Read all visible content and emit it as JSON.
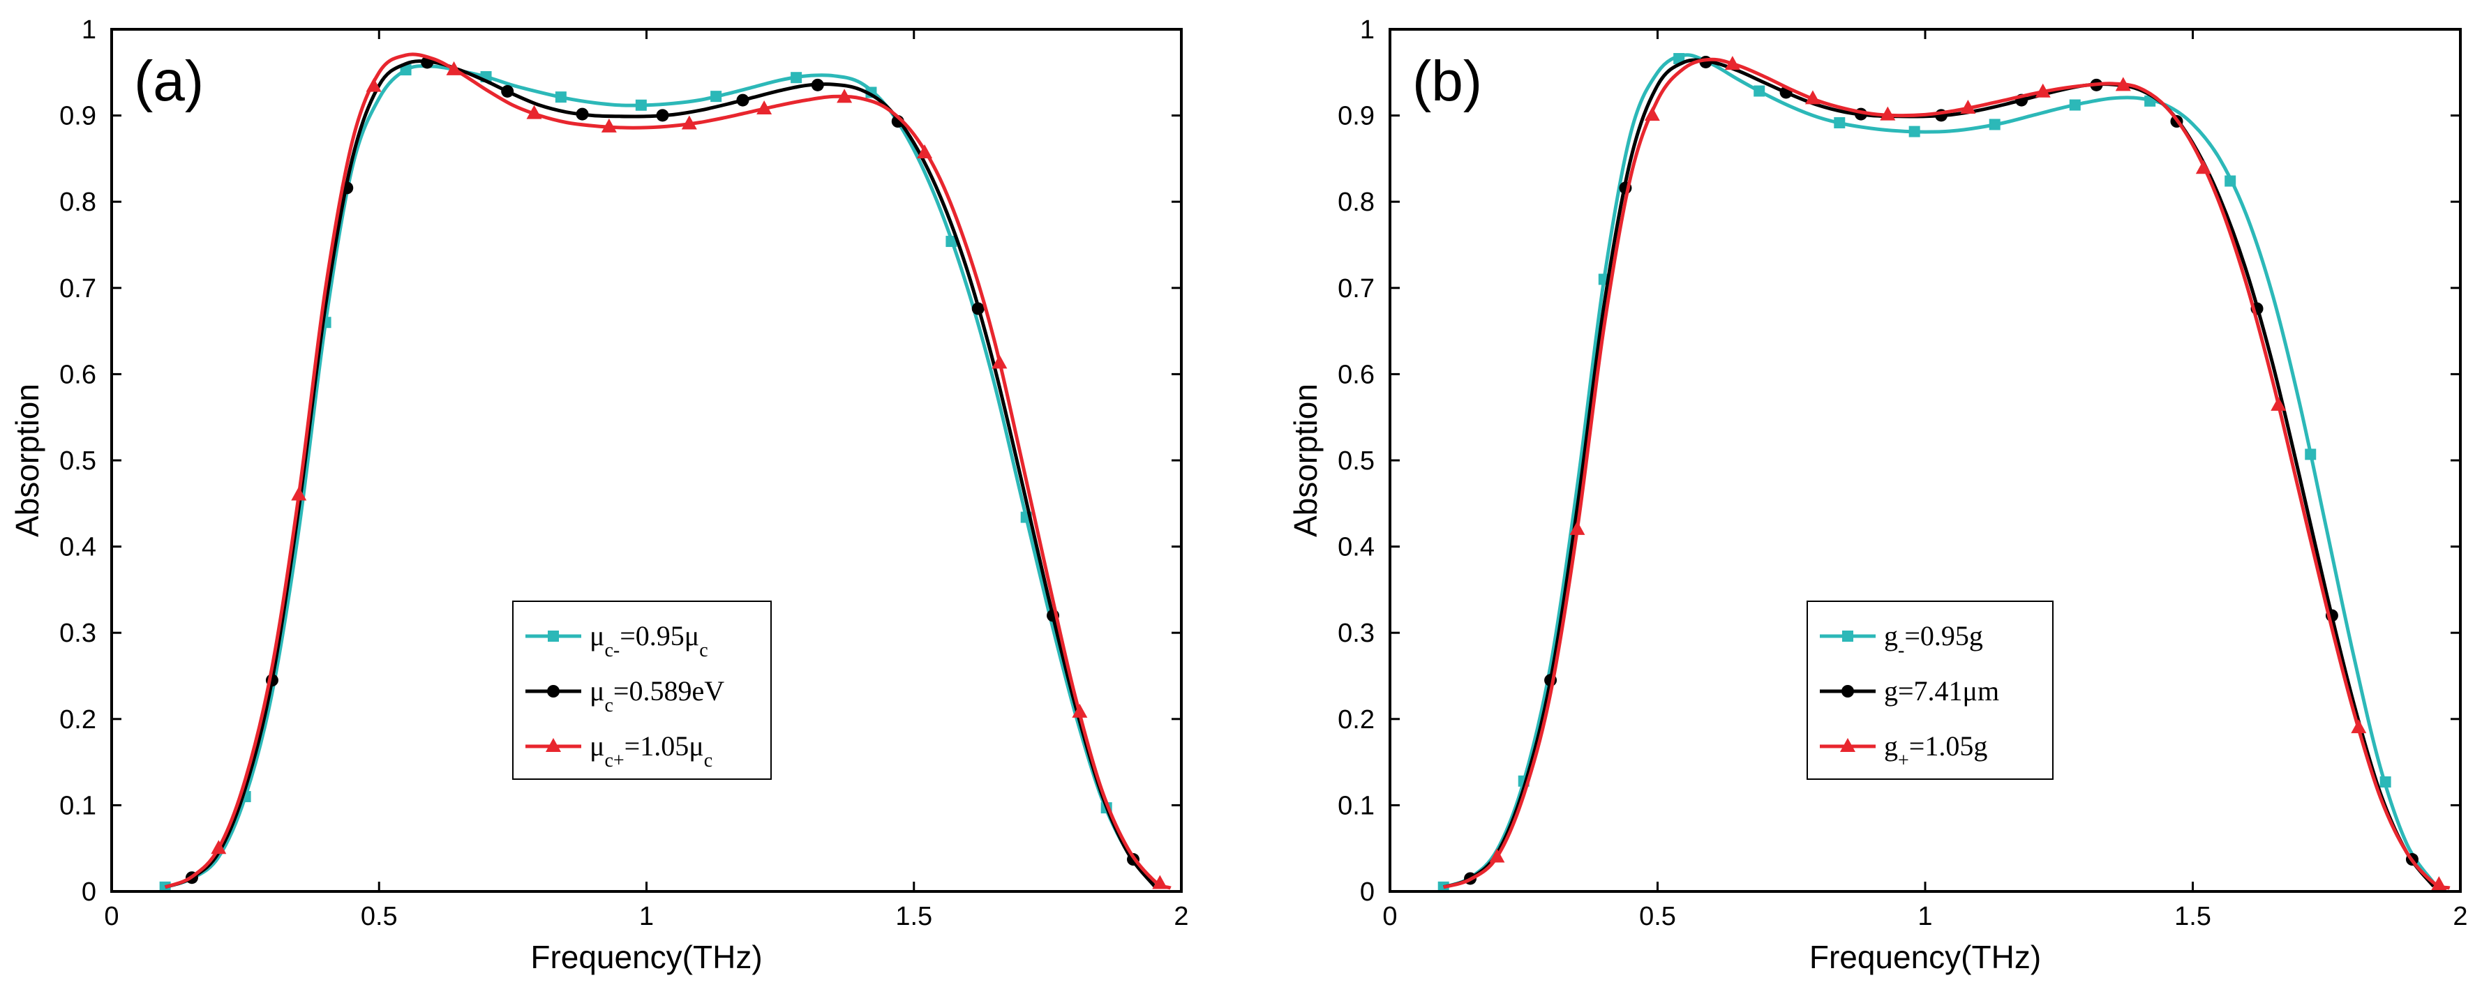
{
  "chart_data": [
    {
      "panel": "(a)",
      "type": "line",
      "xlabel": "Frequency(THz)",
      "ylabel": "Absorption",
      "xlim": [
        0,
        2
      ],
      "ylim": [
        0,
        1
      ],
      "xticks": [
        0,
        0.5,
        1,
        1.5,
        2
      ],
      "xtick_labels": [
        "0",
        "0.5",
        "1",
        "1.5",
        "2"
      ],
      "yticks": [
        0,
        0.1,
        0.2,
        0.3,
        0.4,
        0.5,
        0.6,
        0.7,
        0.8,
        0.9,
        1
      ],
      "ytick_labels": [
        "0",
        "0.1",
        "0.2",
        "0.3",
        "0.4",
        "0.5",
        "0.6",
        "0.7",
        "0.8",
        "0.9",
        "1"
      ],
      "legend_position": "bottom-center",
      "series": [
        {
          "name": "μc-=0.95μc",
          "legend": {
            "base": "μ",
            "sub": "c-",
            "text": "=0.95μ",
            "tail_sub": "c"
          },
          "color": "#2cb8b8",
          "marker": "square",
          "x": [
            0.1,
            0.15,
            0.2,
            0.25,
            0.3,
            0.35,
            0.4,
            0.45,
            0.5,
            0.55,
            0.6,
            0.65,
            0.7,
            0.75,
            0.8,
            0.85,
            0.9,
            0.95,
            1.0,
            1.05,
            1.1,
            1.15,
            1.2,
            1.25,
            1.3,
            1.35,
            1.4,
            1.45,
            1.5,
            1.55,
            1.6,
            1.65,
            1.7,
            1.75,
            1.8,
            1.85,
            1.9,
            1.95
          ],
          "y": [
            0.005,
            0.015,
            0.04,
            0.11,
            0.23,
            0.42,
            0.66,
            0.84,
            0.92,
            0.953,
            0.957,
            0.952,
            0.945,
            0.935,
            0.927,
            0.92,
            0.915,
            0.912,
            0.912,
            0.914,
            0.918,
            0.925,
            0.933,
            0.941,
            0.946,
            0.946,
            0.938,
            0.91,
            0.86,
            0.79,
            0.7,
            0.59,
            0.46,
            0.33,
            0.21,
            0.11,
            0.045,
            0.006
          ],
          "marker_x": [
            0.1,
            0.25,
            0.4,
            0.55,
            0.7,
            0.84,
            0.99,
            1.13,
            1.28,
            1.42,
            1.57,
            1.71,
            1.86
          ]
        },
        {
          "name": "μc=0.589eV",
          "legend": {
            "base": "μ",
            "sub": "c",
            "text": "=0.589eV",
            "tail_sub": ""
          },
          "color": "#000000",
          "marker": "circle",
          "x": [
            0.1,
            0.15,
            0.2,
            0.25,
            0.3,
            0.35,
            0.4,
            0.45,
            0.5,
            0.55,
            0.6,
            0.65,
            0.7,
            0.75,
            0.8,
            0.85,
            0.9,
            0.95,
            1.0,
            1.05,
            1.1,
            1.15,
            1.2,
            1.25,
            1.3,
            1.35,
            1.4,
            1.45,
            1.5,
            1.55,
            1.6,
            1.65,
            1.7,
            1.75,
            1.8,
            1.85,
            1.9,
            1.95
          ],
          "y": [
            0.005,
            0.016,
            0.045,
            0.12,
            0.245,
            0.445,
            0.68,
            0.85,
            0.935,
            0.96,
            0.962,
            0.953,
            0.94,
            0.925,
            0.912,
            0.904,
            0.9,
            0.899,
            0.899,
            0.901,
            0.906,
            0.913,
            0.921,
            0.929,
            0.935,
            0.936,
            0.93,
            0.91,
            0.868,
            0.805,
            0.72,
            0.61,
            0.48,
            0.345,
            0.22,
            0.115,
            0.045,
            0.006
          ],
          "marker_x": [
            0.15,
            0.3,
            0.44,
            0.59,
            0.74,
            0.88,
            1.03,
            1.18,
            1.32,
            1.47,
            1.62,
            1.76,
            1.91
          ]
        },
        {
          "name": "μc+=1.05μc",
          "legend": {
            "base": "μ",
            "sub": "c+",
            "text": "=1.05μ",
            "tail_sub": "c"
          },
          "color": "#e8262e",
          "marker": "triangle",
          "x": [
            0.1,
            0.15,
            0.2,
            0.25,
            0.3,
            0.35,
            0.4,
            0.45,
            0.5,
            0.55,
            0.6,
            0.65,
            0.7,
            0.75,
            0.8,
            0.85,
            0.9,
            0.95,
            1.0,
            1.05,
            1.1,
            1.15,
            1.2,
            1.25,
            1.3,
            1.35,
            1.4,
            1.45,
            1.5,
            1.55,
            1.6,
            1.65,
            1.7,
            1.75,
            1.8,
            1.85,
            1.9,
            1.95,
            1.98
          ],
          "y": [
            0.005,
            0.017,
            0.05,
            0.13,
            0.26,
            0.46,
            0.7,
            0.87,
            0.95,
            0.97,
            0.966,
            0.95,
            0.93,
            0.912,
            0.9,
            0.892,
            0.888,
            0.886,
            0.886,
            0.888,
            0.892,
            0.898,
            0.905,
            0.912,
            0.918,
            0.922,
            0.92,
            0.908,
            0.878,
            0.825,
            0.745,
            0.64,
            0.505,
            0.365,
            0.23,
            0.12,
            0.05,
            0.012,
            0.004
          ],
          "marker_x": [
            0.2,
            0.35,
            0.49,
            0.64,
            0.79,
            0.93,
            1.08,
            1.22,
            1.37,
            1.52,
            1.66,
            1.81,
            1.96
          ]
        }
      ]
    },
    {
      "panel": "(b)",
      "type": "line",
      "xlabel": "Frequency(THz)",
      "ylabel": "Absorption",
      "xlim": [
        0,
        2
      ],
      "ylim": [
        0,
        1
      ],
      "xticks": [
        0,
        0.5,
        1,
        1.5,
        2
      ],
      "xtick_labels": [
        "0",
        "0.5",
        "1",
        "1.5",
        "2"
      ],
      "yticks": [
        0,
        0.1,
        0.2,
        0.3,
        0.4,
        0.5,
        0.6,
        0.7,
        0.8,
        0.9,
        1
      ],
      "ytick_labels": [
        "0",
        "0.1",
        "0.2",
        "0.3",
        "0.4",
        "0.5",
        "0.6",
        "0.7",
        "0.8",
        "0.9",
        "1"
      ],
      "legend_position": "bottom-center",
      "series": [
        {
          "name": "g-=0.95g",
          "legend": {
            "base": "g",
            "sub": "-",
            "text": "=0.95g",
            "tail_sub": ""
          },
          "color": "#2cb8b8",
          "marker": "square",
          "x": [
            0.1,
            0.15,
            0.2,
            0.25,
            0.3,
            0.35,
            0.4,
            0.45,
            0.5,
            0.55,
            0.6,
            0.65,
            0.7,
            0.75,
            0.8,
            0.85,
            0.9,
            0.95,
            1.0,
            1.05,
            1.1,
            1.15,
            1.2,
            1.25,
            1.3,
            1.35,
            1.4,
            1.45,
            1.5,
            1.55,
            1.6,
            1.65,
            1.7,
            1.75,
            1.8,
            1.85,
            1.9,
            1.95
          ],
          "y": [
            0.005,
            0.016,
            0.048,
            0.128,
            0.262,
            0.47,
            0.71,
            0.88,
            0.95,
            0.97,
            0.96,
            0.942,
            0.925,
            0.91,
            0.898,
            0.89,
            0.885,
            0.882,
            0.881,
            0.882,
            0.886,
            0.892,
            0.9,
            0.908,
            0.915,
            0.92,
            0.92,
            0.912,
            0.89,
            0.85,
            0.785,
            0.69,
            0.565,
            0.42,
            0.275,
            0.145,
            0.055,
            0.01
          ],
          "marker_x": [
            0.1,
            0.25,
            0.4,
            0.54,
            0.69,
            0.84,
            0.98,
            1.13,
            1.28,
            1.42,
            1.57,
            1.72,
            1.86
          ]
        },
        {
          "name": "g=7.41μm",
          "legend": {
            "base": "g",
            "sub": "",
            "text": "=7.41μm",
            "tail_sub": ""
          },
          "color": "#000000",
          "marker": "circle",
          "x": [
            0.1,
            0.15,
            0.2,
            0.25,
            0.3,
            0.35,
            0.4,
            0.45,
            0.5,
            0.55,
            0.6,
            0.65,
            0.7,
            0.75,
            0.8,
            0.85,
            0.9,
            0.95,
            1.0,
            1.05,
            1.1,
            1.15,
            1.2,
            1.25,
            1.3,
            1.35,
            1.4,
            1.45,
            1.5,
            1.55,
            1.6,
            1.65,
            1.7,
            1.75,
            1.8,
            1.85,
            1.9,
            1.95
          ],
          "y": [
            0.005,
            0.015,
            0.044,
            0.12,
            0.245,
            0.445,
            0.68,
            0.85,
            0.935,
            0.962,
            0.962,
            0.952,
            0.938,
            0.924,
            0.912,
            0.904,
            0.9,
            0.899,
            0.899,
            0.901,
            0.906,
            0.913,
            0.921,
            0.929,
            0.935,
            0.936,
            0.93,
            0.91,
            0.868,
            0.805,
            0.72,
            0.61,
            0.48,
            0.345,
            0.22,
            0.115,
            0.045,
            0.006
          ],
          "marker_x": [
            0.15,
            0.3,
            0.44,
            0.59,
            0.74,
            0.88,
            1.03,
            1.18,
            1.32,
            1.47,
            1.62,
            1.76,
            1.91
          ]
        },
        {
          "name": "g+=1.05g",
          "legend": {
            "base": "g",
            "sub": "+",
            "text": "=1.05g",
            "tail_sub": ""
          },
          "color": "#e8262e",
          "marker": "triangle",
          "x": [
            0.1,
            0.15,
            0.2,
            0.25,
            0.3,
            0.35,
            0.4,
            0.45,
            0.5,
            0.55,
            0.6,
            0.65,
            0.7,
            0.75,
            0.8,
            0.85,
            0.9,
            0.95,
            1.0,
            1.05,
            1.1,
            1.15,
            1.2,
            1.25,
            1.3,
            1.35,
            1.4,
            1.45,
            1.5,
            1.55,
            1.6,
            1.65,
            1.7,
            1.75,
            1.8,
            1.85,
            1.9,
            1.95,
            1.98
          ],
          "y": [
            0.005,
            0.014,
            0.04,
            0.112,
            0.23,
            0.42,
            0.655,
            0.83,
            0.918,
            0.955,
            0.965,
            0.958,
            0.945,
            0.93,
            0.917,
            0.908,
            0.902,
            0.9,
            0.901,
            0.905,
            0.911,
            0.918,
            0.925,
            0.931,
            0.935,
            0.937,
            0.932,
            0.91,
            0.866,
            0.798,
            0.705,
            0.59,
            0.46,
            0.33,
            0.21,
            0.11,
            0.045,
            0.01,
            0.004
          ],
          "marker_x": [
            0.2,
            0.35,
            0.49,
            0.64,
            0.79,
            0.93,
            1.08,
            1.22,
            1.37,
            1.52,
            1.66,
            1.81,
            1.96
          ]
        }
      ]
    }
  ]
}
